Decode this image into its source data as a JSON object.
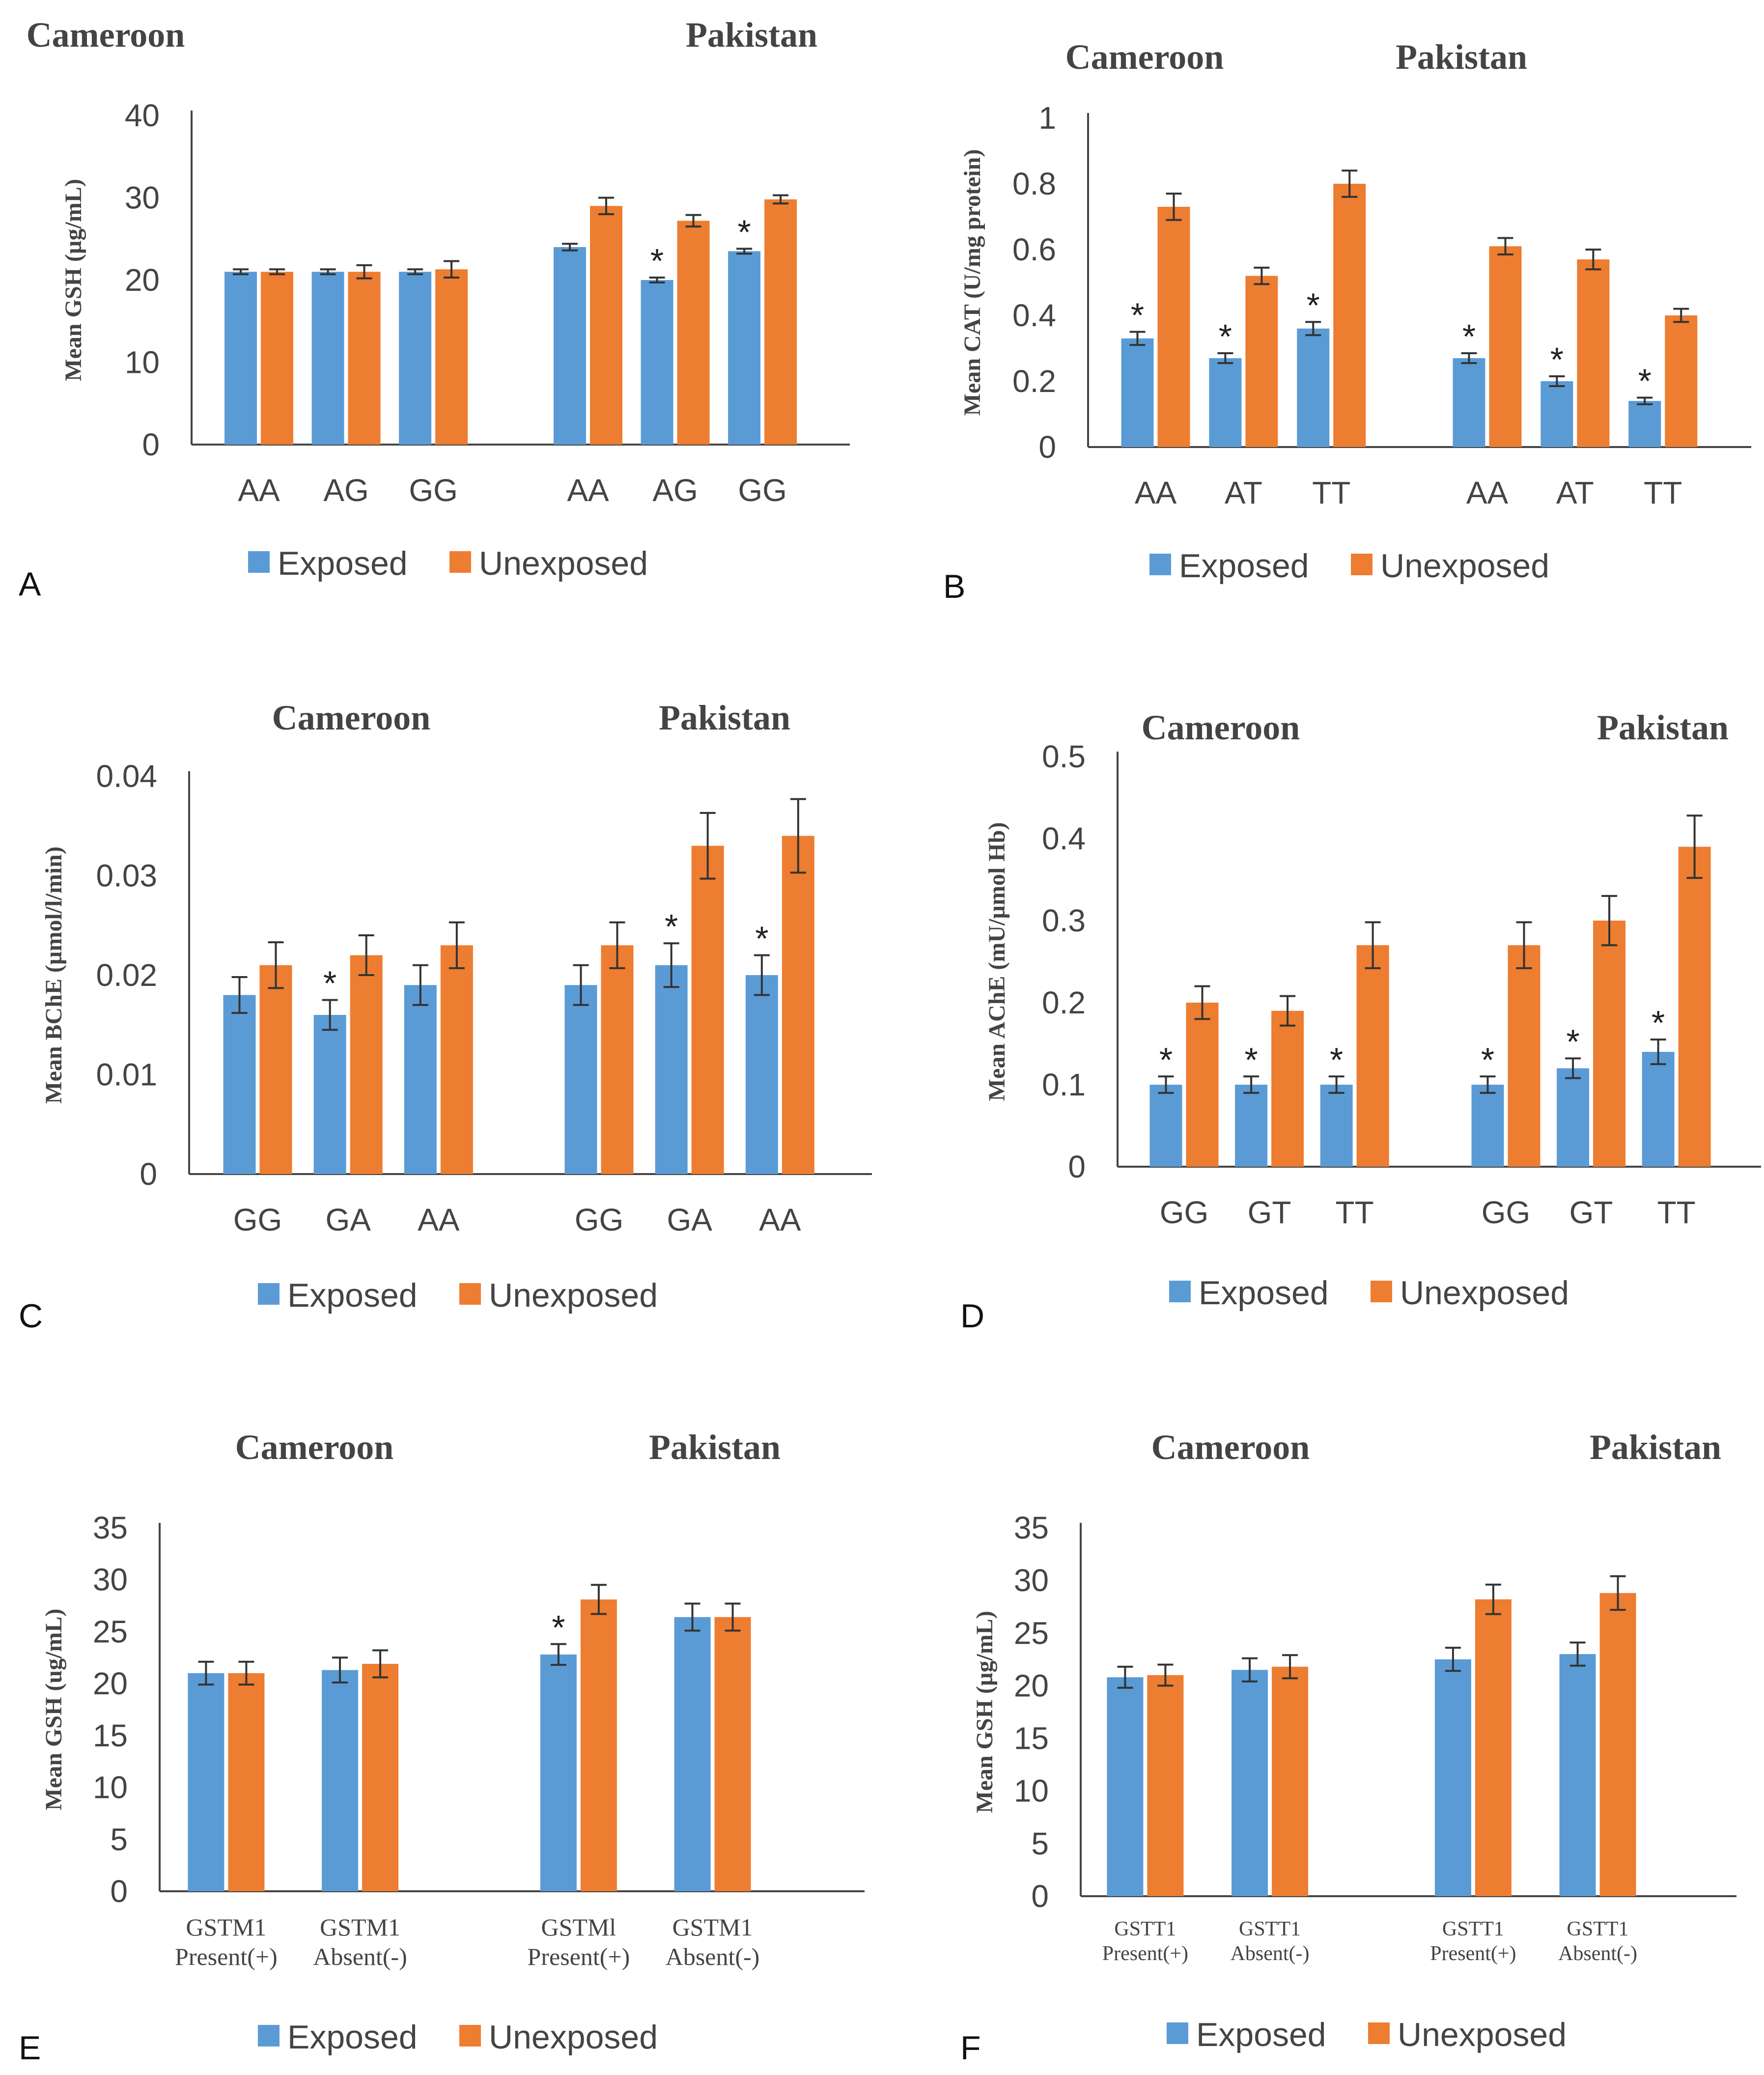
{
  "colors": {
    "exposed": "#5b9bd5",
    "unexposed": "#ed7d31",
    "axis": "#444444",
    "error": "#333333"
  },
  "legend": {
    "exposed": "Exposed",
    "unexposed": "Unexposed"
  },
  "chart_data": [
    {
      "panel": "A",
      "type": "bar",
      "group_titles": [
        "Cameroon",
        "Pakistan"
      ],
      "ylabel": "Mean GSH (µg/mL)",
      "ylim": [
        0,
        40
      ],
      "yticks": [
        0,
        10,
        20,
        30,
        40
      ],
      "groups": [
        {
          "title": "Cameroon",
          "categories": [
            "AA",
            "AG",
            "GG"
          ],
          "exposed": [
            21,
            21,
            21
          ],
          "unexposed": [
            21,
            21,
            21.3
          ],
          "exposed_err": [
            0.3,
            0.3,
            0.3
          ],
          "unexposed_err": [
            0.3,
            0.8,
            1.0
          ],
          "stars": [
            false,
            false,
            false
          ]
        },
        {
          "title": "Pakistan",
          "categories": [
            "AA",
            "AG",
            "GG"
          ],
          "exposed": [
            24,
            20,
            23.5
          ],
          "unexposed": [
            29,
            27.2,
            29.8
          ],
          "exposed_err": [
            0.4,
            0.3,
            0.3
          ],
          "unexposed_err": [
            1.0,
            0.7,
            0.5
          ],
          "stars": [
            false,
            true,
            true
          ]
        }
      ]
    },
    {
      "panel": "B",
      "type": "bar",
      "group_titles": [
        "Cameroon",
        "Pakistan"
      ],
      "ylabel": "Mean CAT (U/mg protein)",
      "ylim": [
        0,
        1
      ],
      "yticks": [
        0,
        0.2,
        0.4,
        0.6,
        0.8,
        1
      ],
      "groups": [
        {
          "title": "Cameroon",
          "categories": [
            "AA",
            "AT",
            "TT"
          ],
          "exposed": [
            0.33,
            0.27,
            0.36
          ],
          "unexposed": [
            0.73,
            0.52,
            0.8
          ],
          "exposed_err": [
            0.02,
            0.015,
            0.02
          ],
          "unexposed_err": [
            0.04,
            0.025,
            0.04
          ],
          "stars": [
            true,
            true,
            true
          ]
        },
        {
          "title": "Pakistan",
          "categories": [
            "AA",
            "AT",
            "TT"
          ],
          "exposed": [
            0.27,
            0.2,
            0.14
          ],
          "unexposed": [
            0.61,
            0.57,
            0.4
          ],
          "exposed_err": [
            0.015,
            0.015,
            0.01
          ],
          "unexposed_err": [
            0.025,
            0.03,
            0.02
          ],
          "stars": [
            true,
            true,
            true
          ]
        }
      ]
    },
    {
      "panel": "C",
      "type": "bar",
      "group_titles": [
        "Cameroon",
        "Pakistan"
      ],
      "ylabel": "Mean BChE (µmol/l/min)",
      "ylim": [
        0,
        0.04
      ],
      "yticks": [
        0,
        0.01,
        0.02,
        0.03,
        0.04
      ],
      "groups": [
        {
          "title": "Cameroon",
          "categories": [
            "GG",
            "GA",
            "AA"
          ],
          "exposed": [
            0.018,
            0.016,
            0.019
          ],
          "unexposed": [
            0.021,
            0.022,
            0.023
          ],
          "exposed_err": [
            0.0018,
            0.0015,
            0.002
          ],
          "unexposed_err": [
            0.0023,
            0.002,
            0.0023
          ],
          "stars": [
            false,
            true,
            false
          ]
        },
        {
          "title": "Pakistan",
          "categories": [
            "GG",
            "GA",
            "AA"
          ],
          "exposed": [
            0.019,
            0.021,
            0.02
          ],
          "unexposed": [
            0.023,
            0.033,
            0.034
          ],
          "exposed_err": [
            0.002,
            0.0022,
            0.002
          ],
          "unexposed_err": [
            0.0023,
            0.0033,
            0.0037
          ],
          "stars": [
            false,
            true,
            true
          ]
        }
      ]
    },
    {
      "panel": "D",
      "type": "bar",
      "group_titles": [
        "Cameroon",
        "Pakistan"
      ],
      "ylabel": "Mean AChE (mU/µmol Hb)",
      "ylim": [
        0,
        0.5
      ],
      "yticks": [
        0,
        0.1,
        0.2,
        0.3,
        0.4,
        0.5
      ],
      "groups": [
        {
          "title": "Cameroon",
          "categories": [
            "GG",
            "GT",
            "TT"
          ],
          "exposed": [
            0.1,
            0.1,
            0.1
          ],
          "unexposed": [
            0.2,
            0.19,
            0.27
          ],
          "exposed_err": [
            0.01,
            0.01,
            0.01
          ],
          "unexposed_err": [
            0.02,
            0.018,
            0.028
          ],
          "stars": [
            true,
            true,
            true
          ]
        },
        {
          "title": "Pakistan",
          "categories": [
            "GG",
            "GT",
            "TT"
          ],
          "exposed": [
            0.1,
            0.12,
            0.14
          ],
          "unexposed": [
            0.27,
            0.3,
            0.39
          ],
          "exposed_err": [
            0.01,
            0.012,
            0.015
          ],
          "unexposed_err": [
            0.028,
            0.03,
            0.038
          ],
          "stars": [
            true,
            true,
            true
          ]
        }
      ]
    },
    {
      "panel": "E",
      "type": "bar",
      "group_titles": [
        "Cameroon",
        "Pakistan"
      ],
      "ylabel": "Mean GSH (ug/mL)",
      "ylim": [
        0,
        35
      ],
      "yticks": [
        0,
        5,
        10,
        15,
        20,
        25,
        30,
        35
      ],
      "label_style": "small",
      "groups": [
        {
          "title": "Cameroon",
          "categories": [
            [
              "GSTM1",
              "Present(+)"
            ],
            [
              "GSTM1",
              "Absent(-)"
            ]
          ],
          "exposed": [
            21,
            21.3
          ],
          "unexposed": [
            21,
            21.9
          ],
          "exposed_err": [
            1.1,
            1.2
          ],
          "unexposed_err": [
            1.1,
            1.3
          ],
          "stars": [
            false,
            false
          ]
        },
        {
          "title": "Pakistan",
          "categories": [
            [
              "GSTMl",
              "Present(+)"
            ],
            [
              "GSTM1",
              "Absent(-)"
            ]
          ],
          "exposed": [
            22.8,
            26.4
          ],
          "unexposed": [
            28.1,
            26.4
          ],
          "exposed_err": [
            1.0,
            1.3
          ],
          "unexposed_err": [
            1.4,
            1.3
          ],
          "stars": [
            true,
            false
          ]
        }
      ]
    },
    {
      "panel": "F",
      "type": "bar",
      "group_titles": [
        "Cameroon",
        "Pakistan"
      ],
      "ylabel": "Mean GSH (µg/mL)",
      "ylim": [
        0,
        35
      ],
      "yticks": [
        0,
        5,
        10,
        15,
        20,
        25,
        30,
        35
      ],
      "label_style": "tiny",
      "groups": [
        {
          "title": "Cameroon",
          "categories": [
            [
              "GSTT1",
              "Present(+)"
            ],
            [
              "GSTT1",
              "Absent(-)"
            ]
          ],
          "exposed": [
            20.8,
            21.5
          ],
          "unexposed": [
            21,
            21.8
          ],
          "exposed_err": [
            1.0,
            1.1
          ],
          "unexposed_err": [
            1.0,
            1.1
          ],
          "stars": [
            false,
            false
          ]
        },
        {
          "title": "Pakistan",
          "categories": [
            [
              "GSTT1",
              "Present(+)"
            ],
            [
              "GSTT1",
              "Absent(-)"
            ]
          ],
          "exposed": [
            22.5,
            23
          ],
          "unexposed": [
            28.2,
            28.8
          ],
          "exposed_err": [
            1.1,
            1.1
          ],
          "unexposed_err": [
            1.4,
            1.6
          ],
          "stars": [
            false,
            false
          ]
        }
      ]
    }
  ]
}
